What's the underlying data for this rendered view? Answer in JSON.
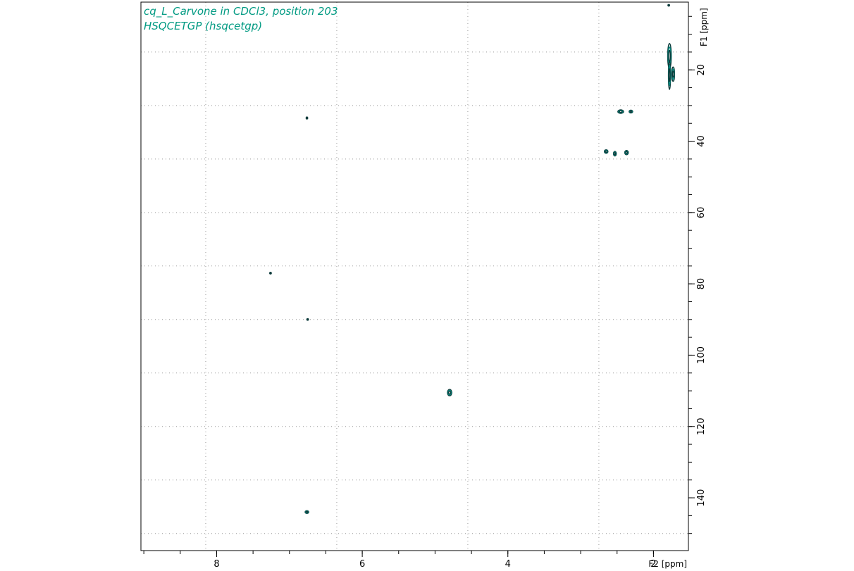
{
  "chart_data": {
    "type": "scatter",
    "plot_kind": "2D NMR contour plot",
    "annotations": [
      "cq_L_Carvone in CDCl3, position 203",
      "HSQCETGP (hsqcetgp)"
    ],
    "xlabel": "F2 [ppm]",
    "ylabel": "F1 [ppm]",
    "x_reversed": true,
    "xlim": [
      9.04,
      1.52
    ],
    "ylim": [
      1.0,
      154.8
    ],
    "x_ticks": [
      8,
      6,
      4,
      2
    ],
    "y_ticks": [
      20,
      40,
      60,
      80,
      100,
      120,
      140
    ],
    "x_minor_step": 0.5,
    "y_minor_step": 5,
    "grid": true,
    "grid_x": [
      8.15,
      6.35,
      4.55,
      2.75,
      0.95
    ],
    "grid_y": [
      15.0,
      30.0,
      45.0,
      60.0,
      75.0,
      90.0,
      105.0,
      120.0,
      135.0,
      150.0
    ],
    "colors": {
      "contour_dark": "#0d3b3b",
      "contour_teal": "#00857a",
      "annotation": "#009a82"
    },
    "series": [
      {
        "values": [
          {
            "x": 1.78,
            "y": 16.1,
            "f2_width": 0.05,
            "f1_width": 7.0
          },
          {
            "x": 1.73,
            "y": 21.2,
            "f2_width": 0.04,
            "f1_width": 4.0
          },
          {
            "x": 1.78,
            "y": 21.5,
            "f2_width": 0.03,
            "f1_width": 8.0
          },
          {
            "x": 1.79,
            "y": 1.9,
            "f2_width": 0.005,
            "f1_width": 0.4
          },
          {
            "x": 2.45,
            "y": 31.7,
            "f2_width": 0.08,
            "f1_width": 1.0
          },
          {
            "x": 2.31,
            "y": 31.7,
            "f2_width": 0.05,
            "f1_width": 0.8
          },
          {
            "x": 2.65,
            "y": 42.9,
            "f2_width": 0.05,
            "f1_width": 1.0
          },
          {
            "x": 2.53,
            "y": 43.5,
            "f2_width": 0.04,
            "f1_width": 1.3
          },
          {
            "x": 2.37,
            "y": 43.2,
            "f2_width": 0.05,
            "f1_width": 1.2
          },
          {
            "x": 4.8,
            "y": 110.5,
            "f2_width": 0.06,
            "f1_width": 1.8
          },
          {
            "x": 6.76,
            "y": 144.0,
            "f2_width": 0.05,
            "f1_width": 0.8
          },
          {
            "x": 6.76,
            "y": 33.5,
            "f2_width": 0.01,
            "f1_width": 0.6
          },
          {
            "x": 6.75,
            "y": 90.0,
            "f2_width": 0.02,
            "f1_width": 0.3
          },
          {
            "x": 7.26,
            "y": 77.0,
            "f2_width": 0.005,
            "f1_width": 0.2
          }
        ]
      }
    ]
  }
}
